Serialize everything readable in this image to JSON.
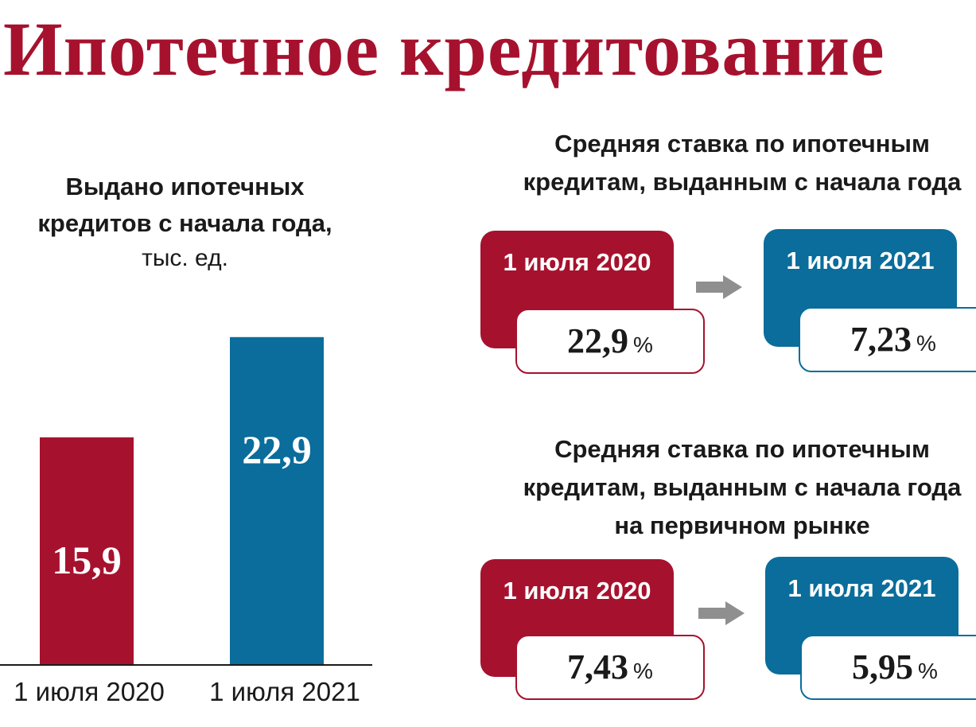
{
  "title": "Ипотечное кредитование",
  "colors": {
    "brand_red": "#a6122e",
    "brand_blue": "#0a6d9b",
    "arrow_gray": "#8f8f8f"
  },
  "chart_data": {
    "type": "bar",
    "title": "Выдано ипотечных кредитов с начала года,",
    "title_lines": [
      "Выдано ипотечных",
      "кредитов с начала года,"
    ],
    "unit": "тыс. ед.",
    "categories": [
      "1 июля 2020",
      "1 июля 2021"
    ],
    "values": [
      15.9,
      22.9
    ],
    "value_labels": [
      "15,9",
      "22,9"
    ],
    "bar_colors": [
      "#a6122e",
      "#0a6d9b"
    ],
    "ylim": [
      0,
      25
    ],
    "grid": false,
    "legend": "none"
  },
  "rates": [
    {
      "title_lines": [
        "Средняя ставка по ипотечным",
        "кредитам, выданным с начала года"
      ],
      "from": {
        "label": "1 июля 2020",
        "value": "22,9",
        "unit": "%"
      },
      "to": {
        "label": "1 июля 2021",
        "value": "7,23",
        "unit": "%"
      }
    },
    {
      "title_lines": [
        "Средняя ставка по ипотечным",
        "кредитам, выданным с начала года",
        "на первичном рынке"
      ],
      "from": {
        "label": "1 июля 2020",
        "value": "7,43",
        "unit": "%"
      },
      "to": {
        "label": "1 июля 2021",
        "value": "5,95",
        "unit": "%"
      }
    }
  ]
}
